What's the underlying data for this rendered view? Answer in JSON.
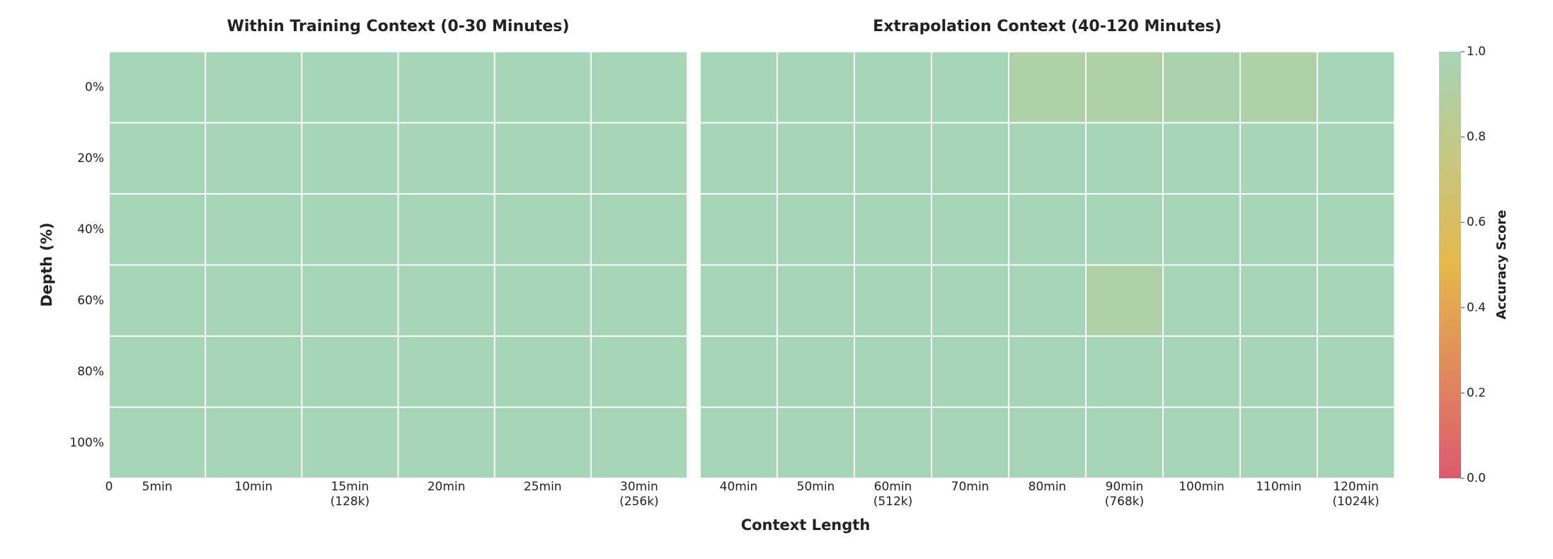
{
  "figure": {
    "xlabel": "Context Length",
    "ylabel": "Depth (%)",
    "colorbar": {
      "label": "Accuracy Score",
      "lim": [
        0,
        1
      ],
      "ticks": [
        {
          "value": 0,
          "label": "0.0"
        },
        {
          "value": 0.2,
          "label": "0.2"
        },
        {
          "value": 0.4,
          "label": "0.4"
        },
        {
          "value": 0.6,
          "label": "0.6"
        },
        {
          "value": 0.8,
          "label": "0.8"
        },
        {
          "value": 1,
          "label": "1.0"
        }
      ],
      "colorscale": [
        [
          0,
          "#dc5a6e"
        ],
        [
          0.5,
          "#e5b84b"
        ],
        [
          1,
          "#a6d5b7"
        ]
      ]
    }
  },
  "chart_data": [
    {
      "type": "heatmap",
      "title": "Within Training Context (0-30 Minutes)",
      "origin_label": "0",
      "categories": [
        "5min",
        "10min",
        "15min\n(128k)",
        "20min",
        "25min",
        "30min\n(256k)"
      ],
      "rows": [
        "0%",
        "20%",
        "40%",
        "60%",
        "80%",
        "100%"
      ],
      "values": [
        [
          1,
          1,
          1,
          1,
          1,
          1
        ],
        [
          1,
          1,
          1,
          1,
          1,
          1
        ],
        [
          1,
          1,
          1,
          1,
          1,
          1
        ],
        [
          1,
          1,
          1,
          1,
          1,
          1
        ],
        [
          1,
          1,
          1,
          1,
          1,
          1
        ],
        [
          1,
          1,
          1,
          1,
          1,
          1
        ]
      ]
    },
    {
      "type": "heatmap",
      "title": "Extrapolation Context (40-120 Minutes)",
      "categories": [
        "40min",
        "50min",
        "60min\n(512k)",
        "70min",
        "80min",
        "90min\n(768k)",
        "100min",
        "110min",
        "120min\n(1024k)"
      ],
      "rows": [
        "0%",
        "20%",
        "40%",
        "60%",
        "80%",
        "100%"
      ],
      "values": [
        [
          1,
          1,
          1,
          1,
          0.93,
          0.93,
          0.95,
          0.93,
          1
        ],
        [
          1,
          1,
          1,
          1,
          1,
          1,
          1,
          1,
          1
        ],
        [
          1,
          1,
          1,
          1,
          1,
          1,
          1,
          1,
          1
        ],
        [
          1,
          1,
          1,
          1,
          1,
          0.93,
          1,
          1,
          1
        ],
        [
          1,
          1,
          1,
          1,
          1,
          1,
          1,
          1,
          1
        ],
        [
          1,
          1,
          1,
          1,
          1,
          1,
          1,
          1,
          1
        ]
      ]
    }
  ]
}
